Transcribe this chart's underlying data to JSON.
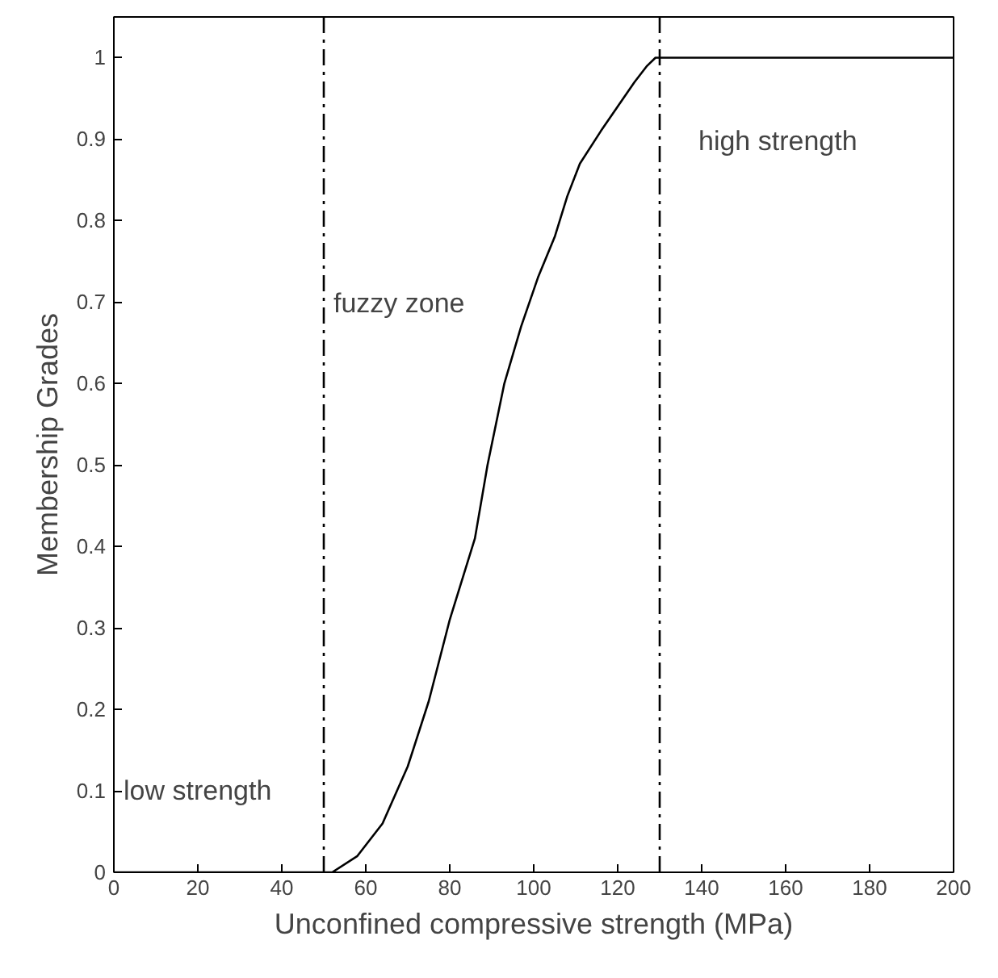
{
  "chart_data": {
    "type": "line",
    "xlabel": "Unconfined compressive strength (MPa)",
    "ylabel": "Membership Grades",
    "x": [
      0,
      52,
      58,
      64,
      70,
      75,
      80,
      86,
      89,
      93,
      97,
      101,
      105,
      108,
      111,
      116,
      120,
      124,
      127,
      129,
      200
    ],
    "series": [
      {
        "color": "#000000",
        "values": [
          0,
          0,
          0.02,
          0.06,
          0.13,
          0.21,
          0.31,
          0.41,
          0.5,
          0.6,
          0.67,
          0.73,
          0.78,
          0.83,
          0.87,
          0.91,
          0.94,
          0.97,
          0.99,
          1.0,
          1.0
        ]
      }
    ],
    "xlim": [
      0,
      200
    ],
    "ylim": [
      0,
      1.05
    ],
    "xticks": [
      0,
      20,
      40,
      60,
      80,
      100,
      120,
      140,
      160,
      180,
      200
    ],
    "yticks": [
      0,
      0.1,
      0.2,
      0.3,
      0.4,
      0.5,
      0.6,
      0.7,
      0.8,
      0.9,
      1
    ],
    "ref_lines": [
      {
        "axis": "x",
        "value": 50,
        "label": null,
        "color": "#000000",
        "line_style": "dashed"
      },
      {
        "axis": "x",
        "value": 130,
        "label": null,
        "color": "#000000",
        "line_style": "dashed"
      }
    ],
    "annotations": [
      "low strength",
      "fuzzy zone",
      "high strength"
    ],
    "grid": false,
    "line_style": "solid",
    "marker": "none"
  }
}
